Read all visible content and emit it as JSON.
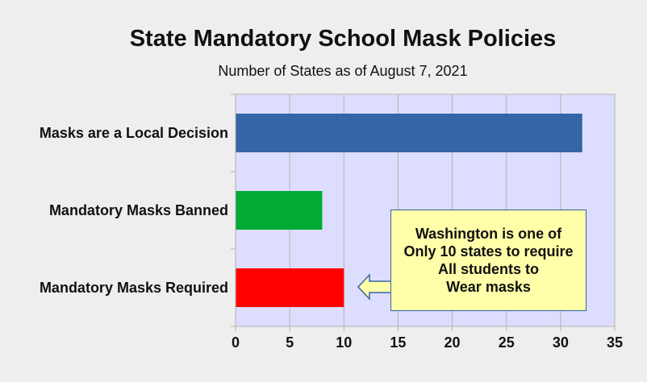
{
  "chart_data": {
    "type": "bar",
    "orientation": "horizontal",
    "title": "State Mandatory School Mask Policies",
    "subtitle": "Number of States as of August 7, 2021",
    "xlabel": "",
    "ylabel": "",
    "categories": [
      "Masks are a Local Decision",
      "Mandatory Masks Banned",
      "Mandatory Masks Required"
    ],
    "values": [
      32,
      8,
      10
    ],
    "bar_colors": [
      "#3465a4",
      "#00aa33",
      "#ff0000"
    ],
    "xlim": [
      0,
      35
    ],
    "xticks": [
      "0",
      "5",
      "10",
      "15",
      "20",
      "25",
      "30",
      "35"
    ],
    "grid": true,
    "plot_background": "#ddddff",
    "annotation": {
      "lines": [
        "Washington is one of",
        "Only 10 states to require",
        "All students to",
        "Wear masks"
      ],
      "background": "#ffffaa",
      "arrow_target": "Mandatory Masks Required"
    }
  }
}
